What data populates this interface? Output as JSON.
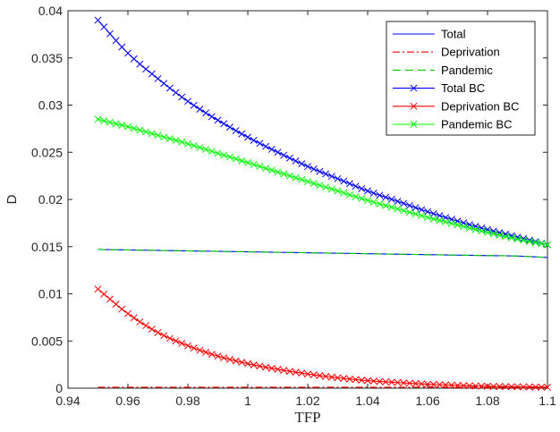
{
  "chart_data": {
    "type": "line",
    "title": "",
    "xlabel": "TFP",
    "ylabel": "D",
    "xlim": [
      0.94,
      1.1
    ],
    "ylim": [
      0,
      0.04
    ],
    "xticks": [
      "0.94",
      "0.96",
      "0.98",
      "1",
      "1.02",
      "1.04",
      "1.06",
      "1.08",
      "1.1"
    ],
    "yticks": [
      "0",
      "0.005",
      "0.01",
      "0.015",
      "0.02",
      "0.025",
      "0.03",
      "0.035",
      "0.04"
    ],
    "grid": false,
    "legend_position": "top-right",
    "x": [
      0.95,
      0.96,
      0.97,
      0.98,
      0.99,
      1.0,
      1.01,
      1.02,
      1.03,
      1.04,
      1.05,
      1.06,
      1.07,
      1.08,
      1.09,
      1.1
    ],
    "series": [
      {
        "name": "Total",
        "color": "#0000ff",
        "style": "solid",
        "marker": "none",
        "values": [
          0.0147,
          0.01465,
          0.0146,
          0.01455,
          0.0145,
          0.01445,
          0.0144,
          0.01435,
          0.0143,
          0.01425,
          0.0142,
          0.01415,
          0.0141,
          0.01405,
          0.014,
          0.01385
        ]
      },
      {
        "name": "Deprivation",
        "color": "#ff0000",
        "style": "dashdot",
        "marker": "none",
        "values": [
          0.0001,
          0.0001,
          0.0001,
          0.0001,
          0.0001,
          0.0001,
          0.0001,
          0.0001,
          0.0001,
          0.0001,
          0.0001,
          0.0001,
          0.0001,
          0.0001,
          0.0001,
          0.0001
        ]
      },
      {
        "name": "Pandemic",
        "color": "#00cc00",
        "style": "dashed",
        "marker": "none",
        "values": [
          0.0147,
          0.01465,
          0.0146,
          0.01455,
          0.0145,
          0.01445,
          0.0144,
          0.01435,
          0.0143,
          0.01425,
          0.0142,
          0.01415,
          0.0141,
          0.01405,
          0.014,
          0.01385
        ]
      },
      {
        "name": "Total BC",
        "color": "#0000ff",
        "style": "solid",
        "marker": "x",
        "values": [
          0.039,
          0.0355,
          0.0328,
          0.0304,
          0.0284,
          0.0266,
          0.025,
          0.0235,
          0.0222,
          0.0209,
          0.0198,
          0.0187,
          0.0177,
          0.0168,
          0.016,
          0.0152
        ]
      },
      {
        "name": "Deprivation BC",
        "color": "#ff0000",
        "style": "solid",
        "marker": "x",
        "values": [
          0.0105,
          0.0079,
          0.0059,
          0.0045,
          0.0034,
          0.0026,
          0.002,
          0.0015,
          0.0011,
          0.0008,
          0.0006,
          0.00042,
          0.0003,
          0.0002,
          0.00015,
          0.0001
        ]
      },
      {
        "name": "Pandemic BC",
        "color": "#00ff00",
        "style": "solid",
        "marker": "x",
        "values": [
          0.0285,
          0.0277,
          0.0268,
          0.0259,
          0.0249,
          0.0239,
          0.0229,
          0.0219,
          0.0209,
          0.0199,
          0.019,
          0.0181,
          0.0173,
          0.0165,
          0.0158,
          0.0152
        ]
      }
    ]
  }
}
